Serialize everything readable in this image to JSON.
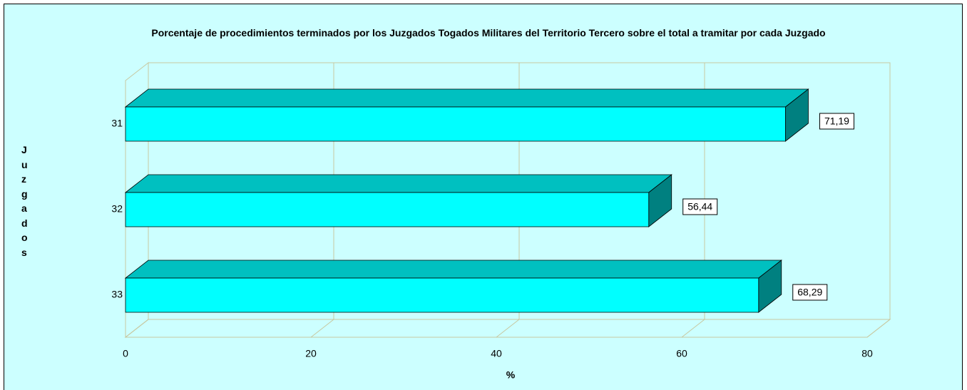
{
  "chart_data": {
    "type": "bar3d_horizontal",
    "title": "Porcentaje de procedimientos terminados por los Juzgados Togados Militares del Territorio Tercero sobre el total a tramitar por cada Juzgado",
    "x_label": "%",
    "y_label": "Juzgados",
    "categories": [
      "31",
      "32",
      "33"
    ],
    "values": [
      71.19,
      56.44,
      68.29
    ],
    "value_labels": [
      "71,19",
      "56,44",
      "68,29"
    ],
    "color": "#00ffff",
    "xlim": [
      0,
      80
    ],
    "xticks": [
      0,
      20,
      40,
      60,
      80
    ],
    "grid": true
  }
}
